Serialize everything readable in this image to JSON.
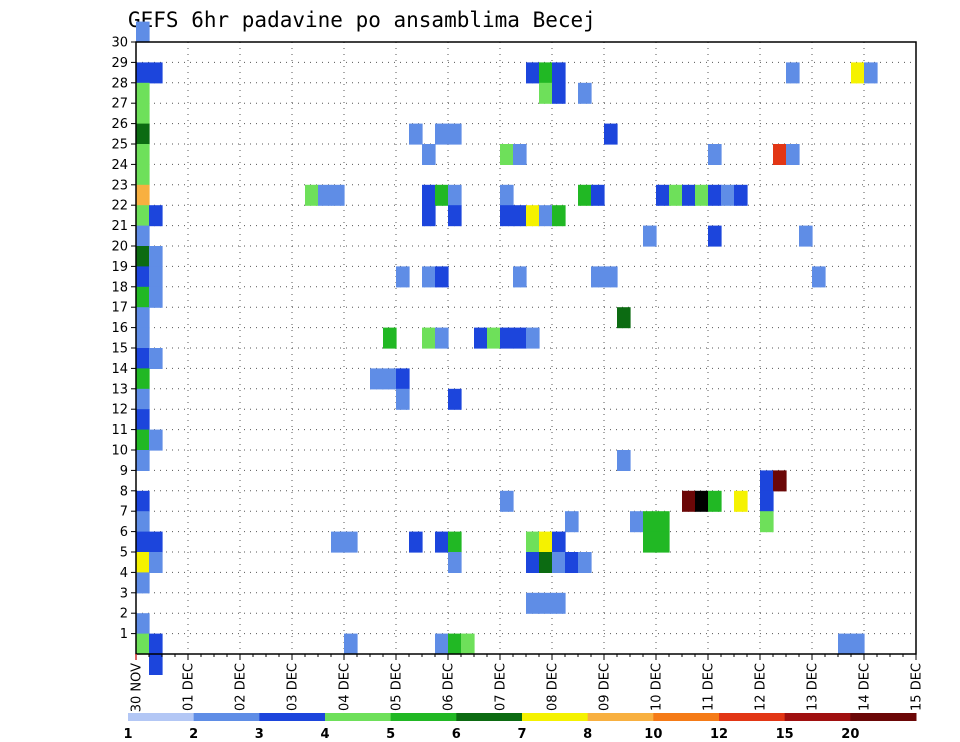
{
  "chart_data": {
    "type": "heatmap",
    "title": "GEFS 6hr padavine po ansamblima Becej",
    "x_ticks": [
      "30 NOV",
      "01 DEC",
      "02 DEC",
      "03 DEC",
      "04 DEC",
      "05 DEC",
      "06 DEC",
      "07 DEC",
      "08 DEC",
      "09 DEC",
      "10 DEC",
      "11 DEC",
      "12 DEC",
      "13 DEC",
      "14 DEC",
      "15 DEC"
    ],
    "y_ticks": [
      "1",
      "2",
      "3",
      "4",
      "5",
      "6",
      "7",
      "8",
      "9",
      "10",
      "11",
      "12",
      "13",
      "14",
      "15",
      "16",
      "17",
      "18",
      "19",
      "20",
      "21",
      "22",
      "23",
      "24",
      "25",
      "26",
      "27",
      "28",
      "29",
      "30"
    ],
    "x_range": [
      0,
      60
    ],
    "y_range": [
      0,
      30
    ],
    "legend": {
      "labels": [
        "1",
        "2",
        "3",
        "4",
        "5",
        "6",
        "7",
        "8",
        "10",
        "12",
        "15",
        "20"
      ],
      "colors": [
        "#b3c7f5",
        "#5f8de6",
        "#1c45dc",
        "#6ee05a",
        "#21b824",
        "#0c6b12",
        "#f5f200",
        "#f8b040",
        "#f57b17",
        "#e23615",
        "#a01010",
        "#6b0707"
      ]
    },
    "cells": [
      {
        "x": 0,
        "y": 30,
        "v": 1
      },
      {
        "x": 0,
        "y": 28,
        "v": 2
      },
      {
        "x": 1,
        "y": 28,
        "v": 2
      },
      {
        "x": 0,
        "y": 27,
        "v": 3
      },
      {
        "x": 0,
        "y": 26,
        "v": 3
      },
      {
        "x": 0,
        "y": 25,
        "v": 5
      },
      {
        "x": 0,
        "y": 24,
        "v": 3
      },
      {
        "x": 0,
        "y": 23,
        "v": 3
      },
      {
        "x": 0,
        "y": 22,
        "v": 7
      },
      {
        "x": 0,
        "y": 21,
        "v": 3
      },
      {
        "x": 1,
        "y": 21,
        "v": 2
      },
      {
        "x": 0,
        "y": 20,
        "v": 1
      },
      {
        "x": 0,
        "y": 19,
        "v": 5
      },
      {
        "x": 1,
        "y": 19,
        "v": 1
      },
      {
        "x": 0,
        "y": 18,
        "v": 2
      },
      {
        "x": 1,
        "y": 18,
        "v": 1
      },
      {
        "x": 0,
        "y": 17,
        "v": 4
      },
      {
        "x": 1,
        "y": 17,
        "v": 1
      },
      {
        "x": 0,
        "y": 16,
        "v": 1
      },
      {
        "x": 0,
        "y": 15,
        "v": 1
      },
      {
        "x": 0,
        "y": 14,
        "v": 2
      },
      {
        "x": 1,
        "y": 14,
        "v": 1
      },
      {
        "x": 0,
        "y": 13,
        "v": 4
      },
      {
        "x": 0,
        "y": 12,
        "v": 1
      },
      {
        "x": 0,
        "y": 11,
        "v": 2
      },
      {
        "x": 0,
        "y": 10,
        "v": 4
      },
      {
        "x": 1,
        "y": 10,
        "v": 1
      },
      {
        "x": 0,
        "y": 9,
        "v": 1
      },
      {
        "x": 0,
        "y": 7,
        "v": 2
      },
      {
        "x": 0,
        "y": 6,
        "v": 1
      },
      {
        "x": 0,
        "y": 5,
        "v": 2
      },
      {
        "x": 1,
        "y": 5,
        "v": 2
      },
      {
        "x": 0,
        "y": 4,
        "v": 6
      },
      {
        "x": 1,
        "y": 4,
        "v": 1
      },
      {
        "x": 0,
        "y": 3,
        "v": 1
      },
      {
        "x": 0,
        "y": 1,
        "v": 1
      },
      {
        "x": 0,
        "y": 0,
        "v": 3
      },
      {
        "x": 1,
        "y": 0,
        "v": 2
      },
      {
        "x": 1,
        "y": -1,
        "v": 2
      },
      {
        "x": 30,
        "y": 28,
        "v": 2
      },
      {
        "x": 31,
        "y": 28,
        "v": 4
      },
      {
        "x": 32,
        "y": 28,
        "v": 2
      },
      {
        "x": 31,
        "y": 27,
        "v": 3
      },
      {
        "x": 32,
        "y": 27,
        "v": 2
      },
      {
        "x": 34,
        "y": 27,
        "v": 1
      },
      {
        "x": 50,
        "y": 28,
        "v": 1
      },
      {
        "x": 55,
        "y": 28,
        "v": 6
      },
      {
        "x": 56,
        "y": 28,
        "v": 1
      },
      {
        "x": 21,
        "y": 25,
        "v": 1
      },
      {
        "x": 23,
        "y": 25,
        "v": 1
      },
      {
        "x": 24,
        "y": 25,
        "v": 1
      },
      {
        "x": 36,
        "y": 25,
        "v": 2
      },
      {
        "x": 22,
        "y": 24,
        "v": 1
      },
      {
        "x": 28,
        "y": 24,
        "v": 3
      },
      {
        "x": 29,
        "y": 24,
        "v": 1
      },
      {
        "x": 44,
        "y": 24,
        "v": 1
      },
      {
        "x": 49,
        "y": 24,
        "v": 9
      },
      {
        "x": 50,
        "y": 24,
        "v": 1
      },
      {
        "x": 13,
        "y": 22,
        "v": 3
      },
      {
        "x": 14,
        "y": 22,
        "v": 1
      },
      {
        "x": 15,
        "y": 22,
        "v": 1
      },
      {
        "x": 22,
        "y": 22,
        "v": 2
      },
      {
        "x": 23,
        "y": 22,
        "v": 4
      },
      {
        "x": 24,
        "y": 22,
        "v": 1
      },
      {
        "x": 28,
        "y": 22,
        "v": 1
      },
      {
        "x": 34,
        "y": 22,
        "v": 4
      },
      {
        "x": 35,
        "y": 22,
        "v": 2
      },
      {
        "x": 40,
        "y": 22,
        "v": 2
      },
      {
        "x": 41,
        "y": 22,
        "v": 3
      },
      {
        "x": 42,
        "y": 22,
        "v": 2
      },
      {
        "x": 43,
        "y": 22,
        "v": 3
      },
      {
        "x": 44,
        "y": 22,
        "v": 2
      },
      {
        "x": 45,
        "y": 22,
        "v": 1
      },
      {
        "x": 46,
        "y": 22,
        "v": 2
      },
      {
        "x": 22,
        "y": 21,
        "v": 2
      },
      {
        "x": 24,
        "y": 21,
        "v": 2
      },
      {
        "x": 28,
        "y": 21,
        "v": 2
      },
      {
        "x": 29,
        "y": 21,
        "v": 2
      },
      {
        "x": 30,
        "y": 21,
        "v": 6
      },
      {
        "x": 31,
        "y": 21,
        "v": 1
      },
      {
        "x": 32,
        "y": 21,
        "v": 4
      },
      {
        "x": 39,
        "y": 20,
        "v": 1
      },
      {
        "x": 44,
        "y": 20,
        "v": 2
      },
      {
        "x": 51,
        "y": 20,
        "v": 1
      },
      {
        "x": 20,
        "y": 18,
        "v": 1
      },
      {
        "x": 22,
        "y": 18,
        "v": 1
      },
      {
        "x": 23,
        "y": 18,
        "v": 2
      },
      {
        "x": 29,
        "y": 18,
        "v": 1
      },
      {
        "x": 35,
        "y": 18,
        "v": 1
      },
      {
        "x": 36,
        "y": 18,
        "v": 1
      },
      {
        "x": 52,
        "y": 18,
        "v": 1
      },
      {
        "x": 37,
        "y": 16,
        "v": 5
      },
      {
        "x": 19,
        "y": 15,
        "v": 4
      },
      {
        "x": 22,
        "y": 15,
        "v": 3
      },
      {
        "x": 23,
        "y": 15,
        "v": 1
      },
      {
        "x": 26,
        "y": 15,
        "v": 2
      },
      {
        "x": 27,
        "y": 15,
        "v": 3
      },
      {
        "x": 28,
        "y": 15,
        "v": 2
      },
      {
        "x": 29,
        "y": 15,
        "v": 2
      },
      {
        "x": 30,
        "y": 15,
        "v": 1
      },
      {
        "x": 18,
        "y": 13,
        "v": 1
      },
      {
        "x": 19,
        "y": 13,
        "v": 1
      },
      {
        "x": 20,
        "y": 13,
        "v": 2
      },
      {
        "x": 20,
        "y": 12,
        "v": 1
      },
      {
        "x": 24,
        "y": 12,
        "v": 2
      },
      {
        "x": 37,
        "y": 9,
        "v": 1
      },
      {
        "x": 48,
        "y": 8,
        "v": 2
      },
      {
        "x": 49,
        "y": 8,
        "v": 11
      },
      {
        "x": 48,
        "y": 7,
        "v": 2
      },
      {
        "x": 28,
        "y": 7,
        "v": 1
      },
      {
        "x": 42,
        "y": 7,
        "v": 11
      },
      {
        "x": 43,
        "y": 7,
        "v": 12
      },
      {
        "x": 44,
        "y": 7,
        "v": 4
      },
      {
        "x": 46,
        "y": 7,
        "v": 6
      },
      {
        "x": 48,
        "y": 6,
        "v": 3
      },
      {
        "x": 33,
        "y": 6,
        "v": 1
      },
      {
        "x": 38,
        "y": 6,
        "v": 1
      },
      {
        "x": 39,
        "y": 6,
        "v": 4
      },
      {
        "x": 40,
        "y": 6,
        "v": 4
      },
      {
        "x": 39,
        "y": 5,
        "v": 4
      },
      {
        "x": 40,
        "y": 5,
        "v": 4
      },
      {
        "x": 15,
        "y": 5,
        "v": 1
      },
      {
        "x": 16,
        "y": 5,
        "v": 1
      },
      {
        "x": 21,
        "y": 5,
        "v": 2
      },
      {
        "x": 23,
        "y": 5,
        "v": 2
      },
      {
        "x": 24,
        "y": 5,
        "v": 4
      },
      {
        "x": 30,
        "y": 5,
        "v": 3
      },
      {
        "x": 31,
        "y": 5,
        "v": 6
      },
      {
        "x": 32,
        "y": 5,
        "v": 2
      },
      {
        "x": 24,
        "y": 4,
        "v": 1
      },
      {
        "x": 30,
        "y": 4,
        "v": 2
      },
      {
        "x": 31,
        "y": 4,
        "v": 5
      },
      {
        "x": 32,
        "y": 4,
        "v": 1
      },
      {
        "x": 33,
        "y": 4,
        "v": 2
      },
      {
        "x": 34,
        "y": 4,
        "v": 1
      },
      {
        "x": 30,
        "y": 2,
        "v": 1
      },
      {
        "x": 31,
        "y": 2,
        "v": 1
      },
      {
        "x": 32,
        "y": 2,
        "v": 1
      },
      {
        "x": 16,
        "y": 0,
        "v": 1
      },
      {
        "x": 23,
        "y": 0,
        "v": 1
      },
      {
        "x": 24,
        "y": 0,
        "v": 4
      },
      {
        "x": 25,
        "y": 0,
        "v": 3
      },
      {
        "x": 54,
        "y": 0,
        "v": 1
      },
      {
        "x": 55,
        "y": 0,
        "v": 1
      }
    ]
  }
}
